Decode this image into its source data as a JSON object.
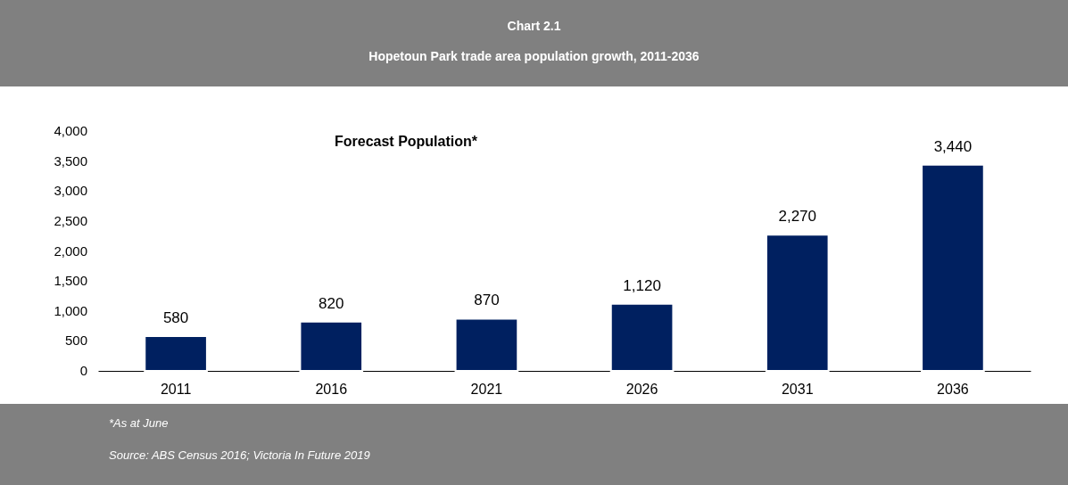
{
  "chart_data": {
    "type": "bar",
    "title": "Chart 2.1",
    "subtitle": "Hopetoun Park trade area population growth, 2011-2036",
    "categories": [
      "2011",
      "2016",
      "2021",
      "2026",
      "2031",
      "2036"
    ],
    "values": [
      580,
      820,
      870,
      1120,
      2270,
      3440
    ],
    "color": "#002060",
    "value_labels": [
      "580",
      "820",
      "870",
      "1,120",
      "2,270",
      "3,440"
    ],
    "ylim": [
      0,
      4000
    ],
    "yticks": [
      0,
      {
        "value": 500,
        "label": "500"
      },
      {
        "value": 1000,
        "label": "1,000"
      },
      {
        "value": 1500,
        "label": "1,500"
      },
      {
        "value": 2000,
        "label": "2,000"
      },
      {
        "value": 2500,
        "label": "2,500"
      },
      {
        "value": 3000,
        "label": "3,000"
      },
      {
        "value": 3500,
        "label": "3,500"
      },
      {
        "value": 4000,
        "label": "4,000"
      }
    ],
    "grid": false,
    "annotations": [
      "Forecast Population*",
      "*As at June",
      "Source: ABS Census 2016; Victoria In Future 2019"
    ]
  }
}
